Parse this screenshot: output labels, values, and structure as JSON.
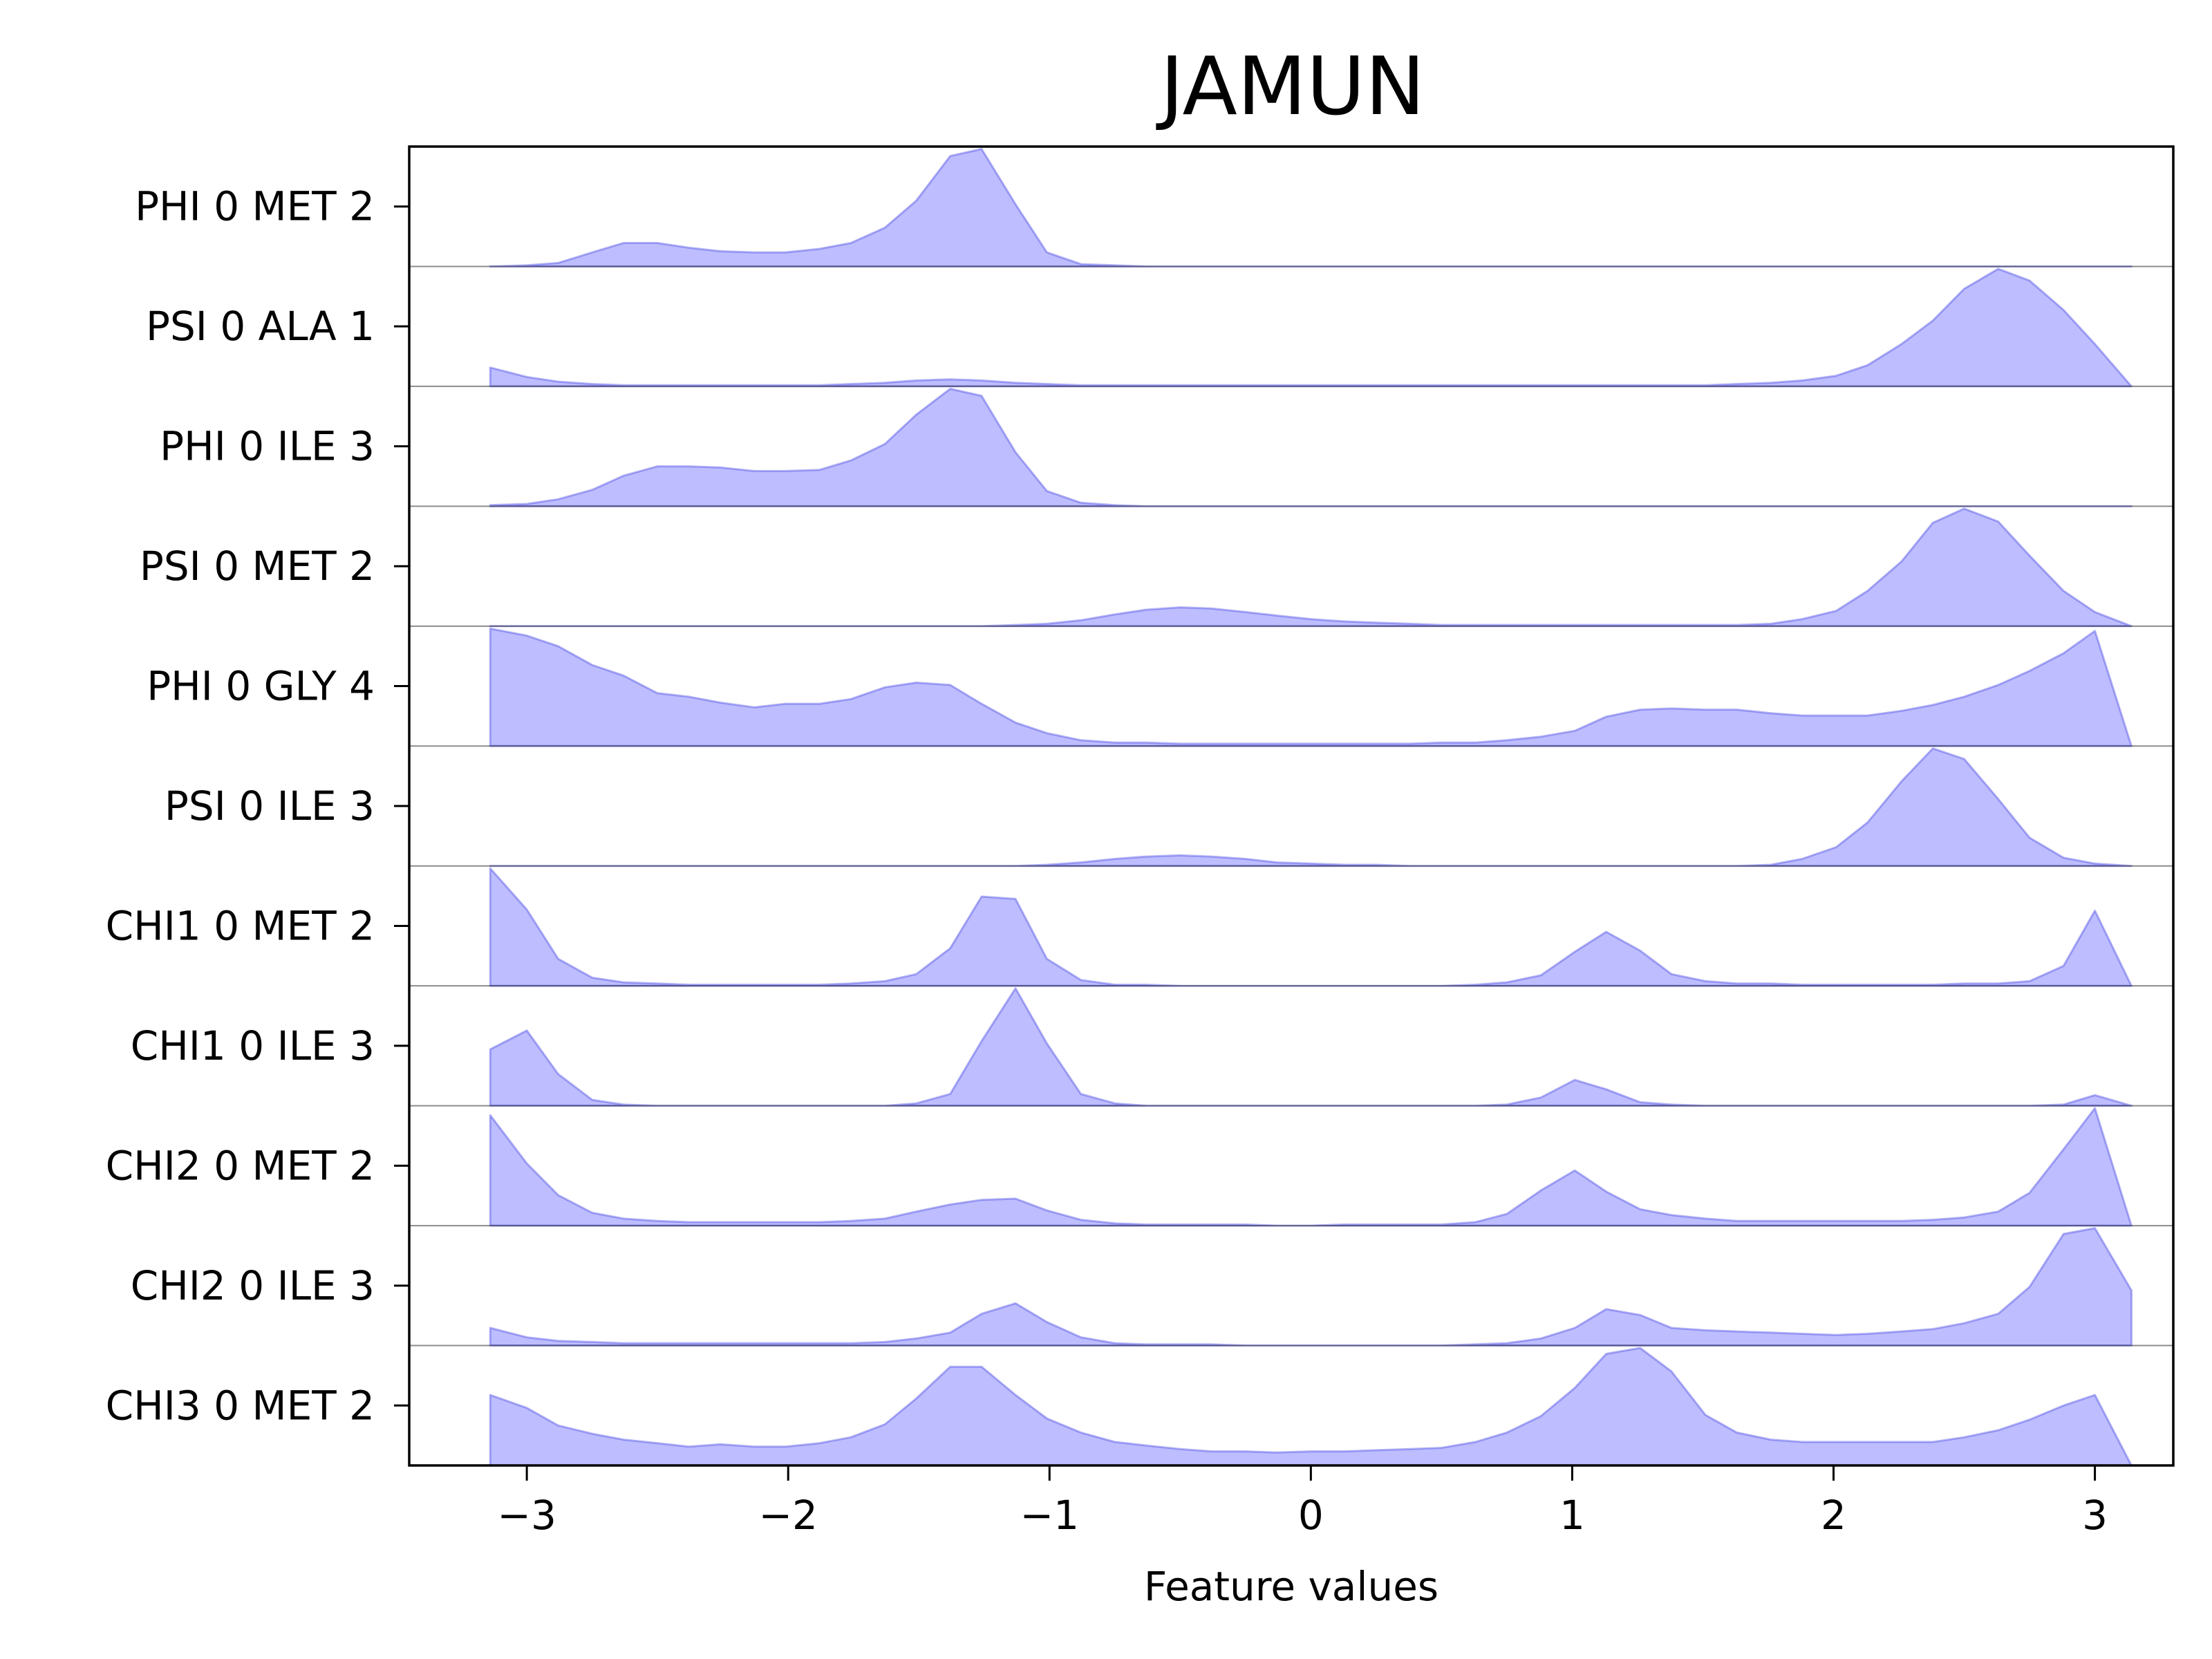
{
  "chart_data": {
    "type": "area",
    "title": "JAMUN",
    "xlabel": "Feature values",
    "ylabel": "",
    "xlim": [
      -3.45,
      3.3
    ],
    "xticks": [
      {
        "value": -3,
        "label": "−3"
      },
      {
        "value": -2,
        "label": "−2"
      },
      {
        "value": -1,
        "label": "−1"
      },
      {
        "value": 0,
        "label": "0"
      },
      {
        "value": 1,
        "label": "1"
      },
      {
        "value": 2,
        "label": "2"
      },
      {
        "value": 3,
        "label": "3"
      }
    ],
    "color": "#0000ff",
    "x": [
      -3.14,
      -3.0,
      -2.88,
      -2.75,
      -2.63,
      -2.5,
      -2.38,
      -2.26,
      -2.13,
      -2.01,
      -1.88,
      -1.76,
      -1.63,
      -1.51,
      -1.38,
      -1.26,
      -1.13,
      -1.01,
      -0.88,
      -0.75,
      -0.63,
      -0.5,
      -0.38,
      -0.25,
      -0.13,
      0.0,
      0.13,
      0.25,
      0.38,
      0.5,
      0.63,
      0.75,
      0.88,
      1.01,
      1.13,
      1.26,
      1.38,
      1.51,
      1.63,
      1.76,
      1.88,
      2.01,
      2.13,
      2.26,
      2.38,
      2.5,
      2.63,
      2.75,
      2.88,
      3.0,
      3.14
    ],
    "series": [
      {
        "name": "PHI 0 MET 2",
        "values": [
          0.0,
          0.01,
          0.03,
          0.12,
          0.2,
          0.2,
          0.16,
          0.13,
          0.12,
          0.12,
          0.15,
          0.2,
          0.33,
          0.56,
          0.94,
          1.0,
          0.53,
          0.12,
          0.02,
          0.01,
          0.0,
          0.0,
          0.0,
          0.0,
          0.0,
          0.0,
          0.0,
          0.0,
          0.0,
          0.0,
          0.0,
          0.0,
          0.0,
          0.0,
          0.0,
          0.0,
          0.0,
          0.0,
          0.0,
          0.0,
          0.0,
          0.0,
          0.0,
          0.0,
          0.0,
          0.0,
          0.0,
          0.0,
          0.0,
          0.0,
          0.0
        ]
      },
      {
        "name": "PSI 0 ALA 1",
        "values": [
          0.16,
          0.08,
          0.04,
          0.02,
          0.01,
          0.01,
          0.01,
          0.01,
          0.01,
          0.01,
          0.01,
          0.02,
          0.03,
          0.05,
          0.06,
          0.05,
          0.03,
          0.02,
          0.01,
          0.01,
          0.01,
          0.01,
          0.01,
          0.01,
          0.01,
          0.01,
          0.01,
          0.01,
          0.01,
          0.01,
          0.01,
          0.01,
          0.01,
          0.01,
          0.01,
          0.01,
          0.01,
          0.01,
          0.02,
          0.03,
          0.05,
          0.09,
          0.18,
          0.36,
          0.56,
          0.83,
          1.0,
          0.9,
          0.65,
          0.36,
          0.0
        ]
      },
      {
        "name": "PHI 0 ILE 3",
        "values": [
          0.01,
          0.02,
          0.06,
          0.14,
          0.26,
          0.34,
          0.34,
          0.33,
          0.3,
          0.3,
          0.31,
          0.39,
          0.53,
          0.78,
          1.0,
          0.94,
          0.46,
          0.13,
          0.03,
          0.01,
          0.0,
          0.0,
          0.0,
          0.0,
          0.0,
          0.0,
          0.0,
          0.0,
          0.0,
          0.0,
          0.0,
          0.0,
          0.0,
          0.0,
          0.0,
          0.0,
          0.0,
          0.0,
          0.0,
          0.0,
          0.0,
          0.0,
          0.0,
          0.0,
          0.0,
          0.0,
          0.0,
          0.0,
          0.0,
          0.0,
          0.0
        ]
      },
      {
        "name": "PSI 0 MET 2",
        "values": [
          0.0,
          0.0,
          0.0,
          0.0,
          0.0,
          0.0,
          0.0,
          0.0,
          0.0,
          0.0,
          0.0,
          0.0,
          0.0,
          0.0,
          0.0,
          0.0,
          0.01,
          0.02,
          0.05,
          0.1,
          0.14,
          0.16,
          0.15,
          0.12,
          0.09,
          0.06,
          0.04,
          0.03,
          0.02,
          0.01,
          0.01,
          0.01,
          0.01,
          0.01,
          0.01,
          0.01,
          0.01,
          0.01,
          0.01,
          0.02,
          0.06,
          0.13,
          0.3,
          0.55,
          0.88,
          1.0,
          0.89,
          0.6,
          0.3,
          0.12,
          0.0
        ]
      },
      {
        "name": "PHI 0 GLY 4",
        "values": [
          1.0,
          0.94,
          0.85,
          0.69,
          0.6,
          0.45,
          0.42,
          0.37,
          0.33,
          0.36,
          0.36,
          0.4,
          0.5,
          0.54,
          0.52,
          0.36,
          0.2,
          0.11,
          0.05,
          0.03,
          0.03,
          0.02,
          0.02,
          0.02,
          0.02,
          0.02,
          0.02,
          0.02,
          0.02,
          0.03,
          0.03,
          0.05,
          0.08,
          0.13,
          0.25,
          0.31,
          0.32,
          0.31,
          0.31,
          0.28,
          0.26,
          0.26,
          0.26,
          0.3,
          0.35,
          0.42,
          0.52,
          0.64,
          0.79,
          0.98,
          0.0
        ]
      },
      {
        "name": "PSI 0 ILE 3",
        "values": [
          0.0,
          0.0,
          0.0,
          0.0,
          0.0,
          0.0,
          0.0,
          0.0,
          0.0,
          0.0,
          0.0,
          0.0,
          0.0,
          0.0,
          0.0,
          0.0,
          0.0,
          0.01,
          0.03,
          0.06,
          0.08,
          0.09,
          0.08,
          0.06,
          0.03,
          0.02,
          0.01,
          0.01,
          0.0,
          0.0,
          0.0,
          0.0,
          0.0,
          0.0,
          0.0,
          0.0,
          0.0,
          0.0,
          0.0,
          0.01,
          0.06,
          0.16,
          0.37,
          0.72,
          1.0,
          0.91,
          0.57,
          0.24,
          0.07,
          0.02,
          0.0
        ]
      },
      {
        "name": "CHI1 0 MET 2",
        "values": [
          1.0,
          0.65,
          0.23,
          0.07,
          0.03,
          0.02,
          0.01,
          0.01,
          0.01,
          0.01,
          0.01,
          0.02,
          0.04,
          0.1,
          0.32,
          0.76,
          0.74,
          0.23,
          0.05,
          0.01,
          0.01,
          0.0,
          0.0,
          0.0,
          0.0,
          0.0,
          0.0,
          0.0,
          0.0,
          0.0,
          0.01,
          0.03,
          0.09,
          0.29,
          0.46,
          0.3,
          0.1,
          0.04,
          0.02,
          0.02,
          0.01,
          0.01,
          0.01,
          0.01,
          0.01,
          0.02,
          0.02,
          0.04,
          0.17,
          0.64,
          0.0
        ]
      },
      {
        "name": "CHI1 0 ILE 3",
        "values": [
          0.48,
          0.64,
          0.27,
          0.05,
          0.01,
          0.0,
          0.0,
          0.0,
          0.0,
          0.0,
          0.0,
          0.0,
          0.0,
          0.02,
          0.1,
          0.55,
          1.0,
          0.53,
          0.1,
          0.02,
          0.0,
          0.0,
          0.0,
          0.0,
          0.0,
          0.0,
          0.0,
          0.0,
          0.0,
          0.0,
          0.0,
          0.01,
          0.07,
          0.22,
          0.14,
          0.03,
          0.01,
          0.0,
          0.0,
          0.0,
          0.0,
          0.0,
          0.0,
          0.0,
          0.0,
          0.0,
          0.0,
          0.0,
          0.01,
          0.09,
          0.0
        ]
      },
      {
        "name": "CHI2 0 MET 2",
        "values": [
          0.94,
          0.53,
          0.26,
          0.11,
          0.06,
          0.04,
          0.03,
          0.03,
          0.03,
          0.03,
          0.03,
          0.04,
          0.06,
          0.12,
          0.18,
          0.22,
          0.23,
          0.13,
          0.05,
          0.02,
          0.01,
          0.01,
          0.01,
          0.01,
          0.0,
          0.0,
          0.01,
          0.01,
          0.01,
          0.01,
          0.03,
          0.1,
          0.3,
          0.47,
          0.29,
          0.14,
          0.09,
          0.06,
          0.04,
          0.04,
          0.04,
          0.04,
          0.04,
          0.04,
          0.05,
          0.07,
          0.12,
          0.28,
          0.65,
          1.0,
          0.0
        ]
      },
      {
        "name": "CHI2 0 ILE 3",
        "values": [
          0.15,
          0.07,
          0.04,
          0.03,
          0.02,
          0.02,
          0.02,
          0.02,
          0.02,
          0.02,
          0.02,
          0.02,
          0.03,
          0.06,
          0.11,
          0.27,
          0.36,
          0.2,
          0.07,
          0.02,
          0.01,
          0.01,
          0.01,
          0.0,
          0.0,
          0.0,
          0.0,
          0.0,
          0.0,
          0.0,
          0.01,
          0.02,
          0.06,
          0.15,
          0.31,
          0.26,
          0.15,
          0.13,
          0.12,
          0.11,
          0.1,
          0.09,
          0.1,
          0.12,
          0.14,
          0.19,
          0.27,
          0.5,
          0.95,
          1.0,
          0.47
        ]
      },
      {
        "name": "CHI3 0 MET 2",
        "values": [
          0.6,
          0.49,
          0.34,
          0.27,
          0.22,
          0.19,
          0.16,
          0.18,
          0.16,
          0.16,
          0.19,
          0.24,
          0.35,
          0.57,
          0.84,
          0.84,
          0.6,
          0.4,
          0.28,
          0.2,
          0.17,
          0.14,
          0.12,
          0.12,
          0.11,
          0.12,
          0.12,
          0.13,
          0.14,
          0.15,
          0.2,
          0.28,
          0.42,
          0.66,
          0.95,
          1.0,
          0.8,
          0.43,
          0.28,
          0.22,
          0.2,
          0.2,
          0.2,
          0.2,
          0.2,
          0.24,
          0.3,
          0.39,
          0.51,
          0.6,
          0.0
        ]
      }
    ]
  }
}
